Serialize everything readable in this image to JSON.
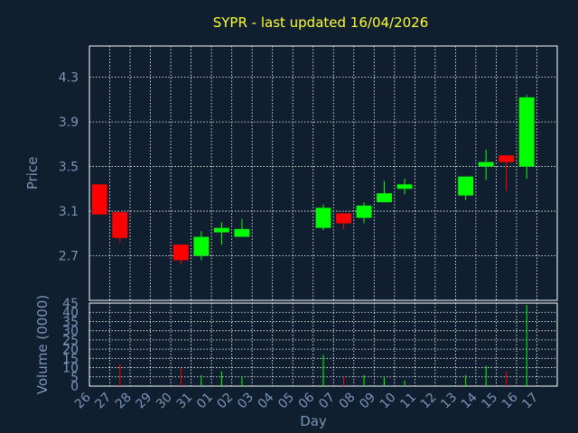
{
  "chart_data": {
    "type": "candlestick",
    "title": "SYPR - last updated 16/04/2026",
    "xlabel": "Day",
    "price_panel": {
      "ylabel": "Price",
      "yticks": [
        "2.7",
        "3.1",
        "3.5",
        "3.9",
        "4.3"
      ],
      "ylim": [
        2.3,
        4.58
      ],
      "grid": true
    },
    "volume_panel": {
      "ylabel": "Volume (0000)",
      "yticks": [
        "0",
        "5",
        "10",
        "15",
        "20",
        "25",
        "30",
        "35",
        "40",
        "45"
      ],
      "ylim": [
        0,
        45
      ],
      "grid": true
    },
    "x_labels": [
      "26",
      "27",
      "28",
      "29",
      "30",
      "31",
      "01",
      "02",
      "03",
      "04",
      "05",
      "06",
      "07",
      "08",
      "09",
      "10",
      "11",
      "12",
      "13",
      "14",
      "15",
      "16",
      "17"
    ],
    "candles": [
      {
        "day": "26",
        "open": 3.34,
        "close": 3.07,
        "high": 3.34,
        "low": 3.07,
        "volume": 0
      },
      {
        "day": "27",
        "open": 3.09,
        "close": 2.86,
        "high": 3.09,
        "low": 2.82,
        "volume": 12
      },
      {
        "day": "30",
        "open": 2.8,
        "close": 2.66,
        "high": 2.8,
        "low": 2.62,
        "volume": 10
      },
      {
        "day": "31",
        "open": 2.7,
        "close": 2.87,
        "high": 2.92,
        "low": 2.66,
        "volume": 6
      },
      {
        "day": "01",
        "open": 2.91,
        "close": 2.95,
        "high": 3.0,
        "low": 2.8,
        "volume": 8
      },
      {
        "day": "02",
        "open": 2.87,
        "close": 2.94,
        "high": 3.03,
        "low": 2.87,
        "volume": 5
      },
      {
        "day": "06",
        "open": 2.95,
        "close": 3.13,
        "high": 3.16,
        "low": 2.93,
        "volume": 17
      },
      {
        "day": "07",
        "open": 3.08,
        "close": 2.99,
        "high": 3.08,
        "low": 2.94,
        "volume": 5
      },
      {
        "day": "08",
        "open": 3.04,
        "close": 3.15,
        "high": 3.18,
        "low": 2.99,
        "volume": 6
      },
      {
        "day": "09",
        "open": 3.18,
        "close": 3.26,
        "high": 3.37,
        "low": 3.18,
        "volume": 5
      },
      {
        "day": "10",
        "open": 3.3,
        "close": 3.34,
        "high": 3.39,
        "low": 3.25,
        "volume": 3
      },
      {
        "day": "13",
        "open": 3.24,
        "close": 3.41,
        "high": 3.41,
        "low": 3.2,
        "volume": 6
      },
      {
        "day": "14",
        "open": 3.5,
        "close": 3.54,
        "high": 3.65,
        "low": 3.38,
        "volume": 11
      },
      {
        "day": "15",
        "open": 3.6,
        "close": 3.54,
        "high": 3.6,
        "low": 3.28,
        "volume": 8
      },
      {
        "day": "16",
        "open": 3.5,
        "close": 4.12,
        "high": 4.14,
        "low": 3.39,
        "volume": 44
      }
    ],
    "colors": {
      "background": "#0f1f30",
      "up": "#00ff00",
      "down": "#ff0000",
      "grid": "#ffffff",
      "title": "#ffff33",
      "axis_text": "#7b94b5"
    }
  }
}
